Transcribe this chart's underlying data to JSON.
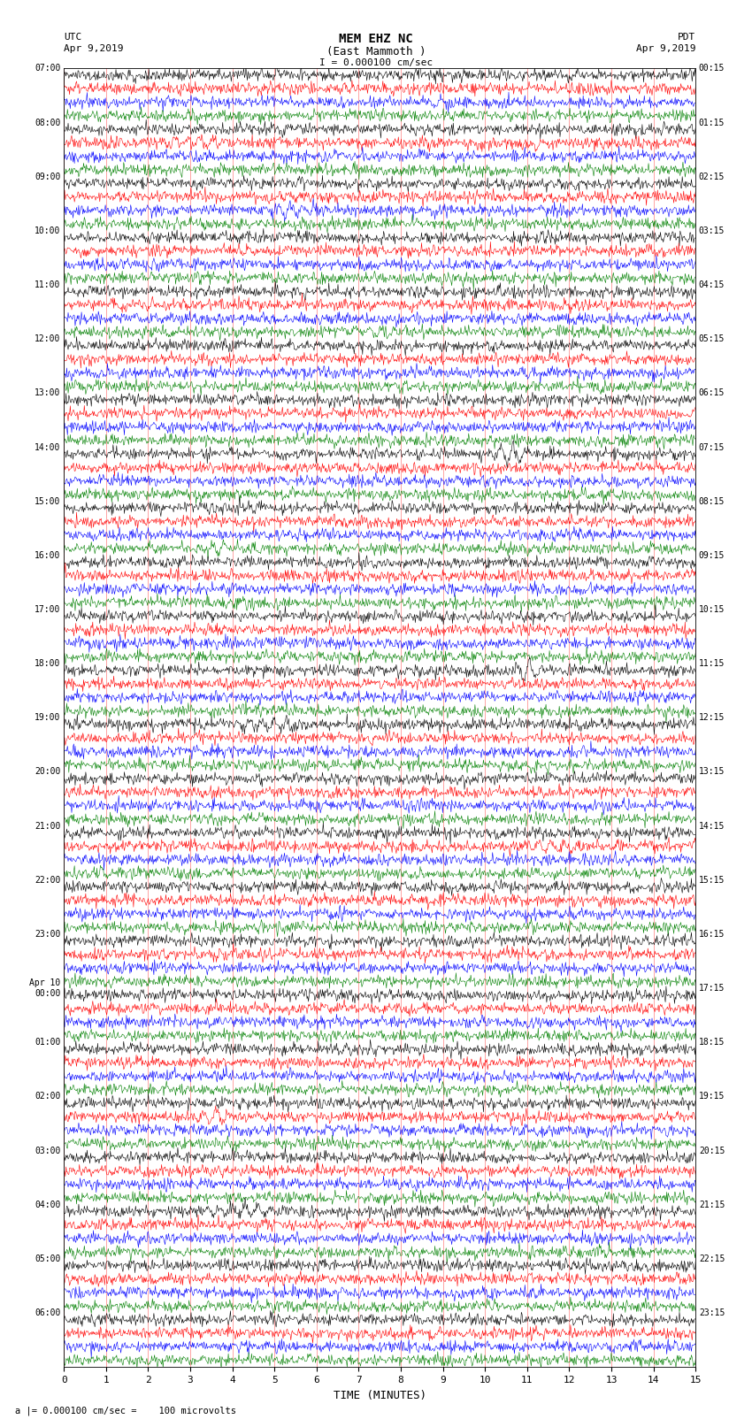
{
  "title_line1": "MEM EHZ NC",
  "title_line2": "(East Mammoth )",
  "title_line3": "I = 0.000100 cm/sec",
  "label_left_top1": "UTC",
  "label_left_top2": "Apr 9,2019",
  "label_right_top1": "PDT",
  "label_right_top2": "Apr 9,2019",
  "xlabel": "TIME (MINUTES)",
  "footer": "a |= 0.000100 cm/sec =    100 microvolts",
  "bg_color": "#ffffff",
  "trace_colors": [
    "black",
    "red",
    "blue",
    "green"
  ],
  "num_traces": 96,
  "minutes_per_trace": 15,
  "x_ticks": [
    0,
    1,
    2,
    3,
    4,
    5,
    6,
    7,
    8,
    9,
    10,
    11,
    12,
    13,
    14,
    15
  ],
  "left_labels": [
    "07:00",
    "",
    "",
    "",
    "08:00",
    "",
    "",
    "",
    "09:00",
    "",
    "",
    "",
    "10:00",
    "",
    "",
    "",
    "11:00",
    "",
    "",
    "",
    "12:00",
    "",
    "",
    "",
    "13:00",
    "",
    "",
    "",
    "14:00",
    "",
    "",
    "",
    "15:00",
    "",
    "",
    "",
    "16:00",
    "",
    "",
    "",
    "17:00",
    "",
    "",
    "",
    "18:00",
    "",
    "",
    "",
    "19:00",
    "",
    "",
    "",
    "20:00",
    "",
    "",
    "",
    "21:00",
    "",
    "",
    "",
    "22:00",
    "",
    "",
    "",
    "23:00",
    "",
    "",
    "",
    "Apr 10\n00:00",
    "",
    "",
    "",
    "01:00",
    "",
    "",
    "",
    "02:00",
    "",
    "",
    "",
    "03:00",
    "",
    "",
    "",
    "04:00",
    "",
    "",
    "",
    "05:00",
    "",
    "",
    "",
    "06:00",
    "",
    "",
    ""
  ],
  "right_labels": [
    "00:15",
    "",
    "",
    "",
    "01:15",
    "",
    "",
    "",
    "02:15",
    "",
    "",
    "",
    "03:15",
    "",
    "",
    "",
    "04:15",
    "",
    "",
    "",
    "05:15",
    "",
    "",
    "",
    "06:15",
    "",
    "",
    "",
    "07:15",
    "",
    "",
    "",
    "08:15",
    "",
    "",
    "",
    "09:15",
    "",
    "",
    "",
    "10:15",
    "",
    "",
    "",
    "11:15",
    "",
    "",
    "",
    "12:15",
    "",
    "",
    "",
    "13:15",
    "",
    "",
    "",
    "14:15",
    "",
    "",
    "",
    "15:15",
    "",
    "",
    "",
    "16:15",
    "",
    "",
    "",
    "17:15",
    "",
    "",
    "",
    "18:15",
    "",
    "",
    "",
    "19:15",
    "",
    "",
    "",
    "20:15",
    "",
    "",
    "",
    "21:15",
    "",
    "",
    "",
    "22:15",
    "",
    "",
    "",
    "23:15",
    "",
    "",
    ""
  ],
  "noise_amplitude": 0.3,
  "event_traces": [
    4,
    5,
    10,
    13,
    19,
    22,
    28,
    35,
    44,
    48,
    57,
    65,
    72,
    77,
    84
  ],
  "event_amplitudes": [
    1.5,
    2.0,
    1.8,
    1.2,
    1.6,
    1.4,
    3.0,
    1.3,
    4.0,
    1.5,
    1.7,
    1.2,
    1.8,
    2.5,
    2.0
  ]
}
